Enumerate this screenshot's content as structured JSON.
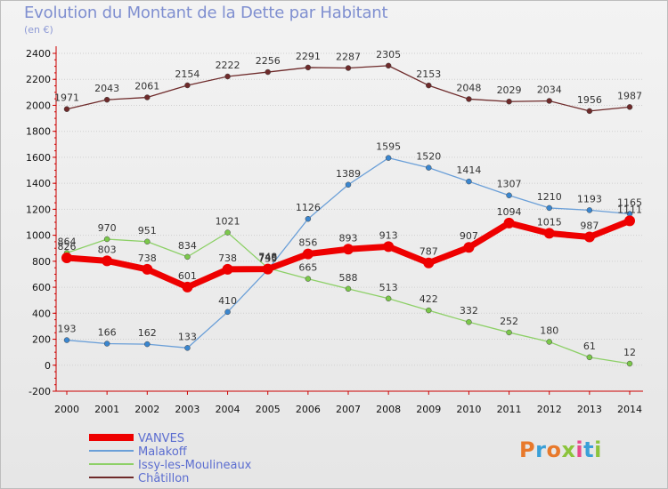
{
  "title": "Evolution du Montant de la Dette par Habitant",
  "subtitle": "(en €)",
  "logo": {
    "text": "Proxiti",
    "colors": [
      "#e8792b",
      "#3aa0d8",
      "#e8792b",
      "#8cc43c",
      "#e84a8a",
      "#3aa0d8",
      "#8cc43c"
    ]
  },
  "chart_data": {
    "type": "line",
    "x": [
      2000,
      2001,
      2002,
      2003,
      2004,
      2005,
      2006,
      2007,
      2008,
      2009,
      2010,
      2011,
      2012,
      2013,
      2014
    ],
    "ylim": [
      -200,
      2400
    ],
    "yticks": [
      -200,
      0,
      200,
      400,
      600,
      800,
      1000,
      1200,
      1400,
      1600,
      1800,
      2000,
      2200,
      2400
    ],
    "grid": true,
    "legend_position": "bottom-left",
    "series": [
      {
        "name": "Châtillon",
        "color": "#6e2a2a",
        "dot": "#6e2a2a",
        "width": 1.3,
        "r": 3,
        "values": [
          1971,
          2043,
          2061,
          2154,
          2222,
          2256,
          2291,
          2287,
          2305,
          2153,
          2048,
          2029,
          2034,
          1956,
          1987
        ]
      },
      {
        "name": "Malakoff",
        "color": "#6a9fd8",
        "dot": "#3a86cf",
        "width": 1.3,
        "r": 3,
        "values": [
          193,
          166,
          162,
          133,
          410,
          735,
          1126,
          1389,
          1595,
          1520,
          1414,
          1307,
          1210,
          1193,
          1165
        ]
      },
      {
        "name": "Issy-les-Moulineaux",
        "color": "#8dd067",
        "dot": "#7bc84a",
        "width": 1.3,
        "r": 3,
        "values": [
          864,
          970,
          951,
          834,
          1021,
          748,
          665,
          588,
          513,
          422,
          332,
          252,
          180,
          61,
          12
        ]
      },
      {
        "name": "VANVES",
        "color": "#ee0000",
        "dot": "#ee0000",
        "width": 7,
        "r": 6,
        "values": [
          826,
          803,
          738,
          601,
          738,
          740,
          856,
          893,
          913,
          787,
          907,
          1094,
          1015,
          987,
          1111
        ]
      }
    ]
  }
}
